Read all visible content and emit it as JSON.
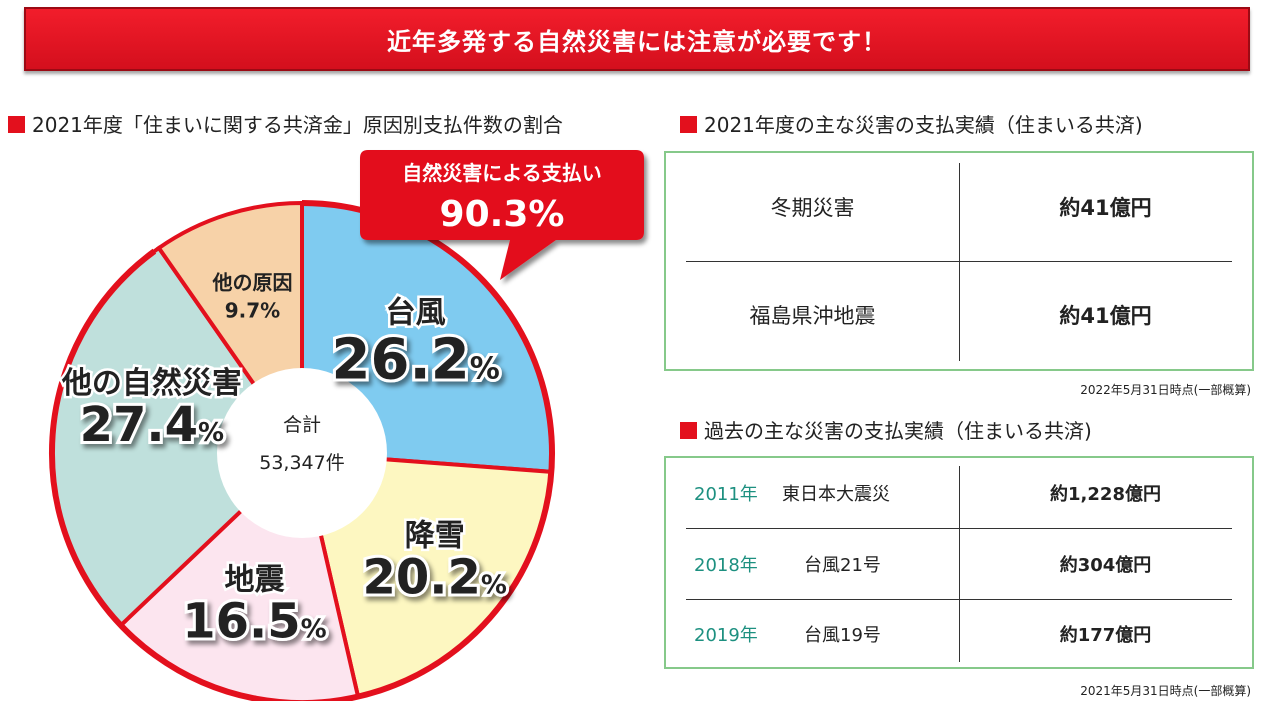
{
  "banner": {
    "title": "近年多発する自然災害には注意が必要です！"
  },
  "pie_section": {
    "heading": "2021年度「住まいに関する共済金」原因別支払件数の割合"
  },
  "callout": {
    "label": "自然災害による支払い",
    "value": "90.3%"
  },
  "center": {
    "label": "合計",
    "value": "53,347件"
  },
  "chart_data": {
    "type": "pie",
    "title": "2021年度「住まいに関する共済金」原因別支払件数の割合",
    "total_label": "合計 53,347件",
    "slices": [
      {
        "label": "台風",
        "value": 26.2,
        "display": "26.2",
        "unit": "%",
        "color": "#7fcbf0",
        "natural_disaster": true
      },
      {
        "label": "降雪",
        "value": 20.2,
        "display": "20.2",
        "unit": "%",
        "color": "#fdf7c1",
        "natural_disaster": true
      },
      {
        "label": "地震",
        "value": 16.5,
        "display": "16.5",
        "unit": "%",
        "color": "#fce5ef",
        "natural_disaster": true
      },
      {
        "label": "他の自然災害",
        "value": 27.4,
        "display": "27.4",
        "unit": "%",
        "color": "#bfe0dc",
        "natural_disaster": true
      },
      {
        "label": "他の原因",
        "value": 9.7,
        "display": "9.7%",
        "unit": "",
        "color": "#f7d2a8",
        "natural_disaster": false
      }
    ],
    "highlight_color": "#e3101d"
  },
  "table2021": {
    "heading": "2021年度の主な災害の支払実績（住まいる共済)",
    "rows": [
      {
        "name": "冬期災害",
        "amount": "約41億円"
      },
      {
        "name": "福島県沖地震",
        "amount": "約41億円"
      }
    ],
    "note": "2022年5月31日時点(一部概算)"
  },
  "table_past": {
    "heading": "過去の主な災害の支払実績（住まいる共済)",
    "year_color": "#1d9080",
    "rows": [
      {
        "year": "2011年",
        "name": "東日本大震災",
        "amount": "約1,228億円"
      },
      {
        "year": "2018年",
        "name": "台風21号",
        "amount": "約304億円"
      },
      {
        "year": "2019年",
        "name": "台風19号",
        "amount": "約177億円"
      }
    ],
    "note": "2021年5月31日時点(一部概算)"
  }
}
